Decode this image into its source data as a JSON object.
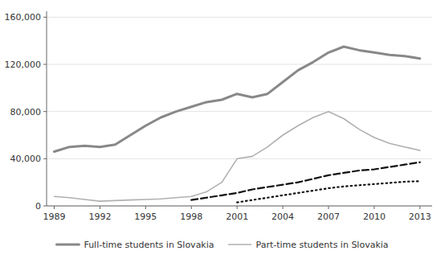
{
  "chart_data": {
    "type": "line",
    "x": [
      1989,
      1990,
      1991,
      1992,
      1993,
      1994,
      1995,
      1996,
      1997,
      1998,
      1999,
      2000,
      2001,
      2002,
      2003,
      2004,
      2005,
      2006,
      2007,
      2008,
      2009,
      2010,
      2011,
      2012,
      2013
    ],
    "series": [
      {
        "name": "Full-time students in Slovakia",
        "color": "#888888",
        "line_style": "solid",
        "values": [
          46000,
          50000,
          51000,
          50000,
          52000,
          60000,
          68000,
          75000,
          80000,
          84000,
          88000,
          90000,
          95000,
          92000,
          95000,
          105000,
          115000,
          122000,
          130000,
          135000,
          132000,
          130000,
          128000,
          127000,
          125000
        ]
      },
      {
        "name": "Part-time students in Slovakia",
        "color": "#b0b0b0",
        "line_style": "solid",
        "values": [
          8000,
          7000,
          5500,
          4000,
          4500,
          5000,
          5500,
          6000,
          7000,
          8000,
          12000,
          20000,
          40000,
          42000,
          50000,
          60000,
          68000,
          75000,
          80000,
          74000,
          65000,
          58000,
          53000,
          50000,
          47000
        ]
      },
      {
        "color": "#111111",
        "line_style": "dashed",
        "values": [
          null,
          null,
          null,
          null,
          null,
          null,
          null,
          null,
          null,
          5000,
          7000,
          9000,
          11000,
          14000,
          16000,
          18000,
          20000,
          23000,
          26000,
          28000,
          30000,
          31000,
          33000,
          35000,
          37000
        ]
      },
      {
        "color": "#111111",
        "line_style": "dotted",
        "values": [
          null,
          null,
          null,
          null,
          null,
          null,
          null,
          null,
          null,
          null,
          null,
          null,
          3000,
          5000,
          7000,
          9000,
          11000,
          13000,
          15000,
          16500,
          17500,
          18500,
          19500,
          20500,
          21000
        ]
      }
    ],
    "xlim": [
      1988.5,
      2013.8
    ],
    "xticks": [
      1989,
      1992,
      1995,
      1998,
      2001,
      2004,
      2007,
      2010,
      2013
    ],
    "ylim": [
      0,
      165000
    ],
    "yticks": [
      0,
      {
        "value": 40000,
        "label": "40,000"
      },
      {
        "value": 80000,
        "label": "80,000"
      },
      {
        "value": 120000,
        "label": "120,000"
      },
      {
        "value": 160000,
        "label": "160,000"
      }
    ],
    "grid": true,
    "legend": "bottom"
  }
}
